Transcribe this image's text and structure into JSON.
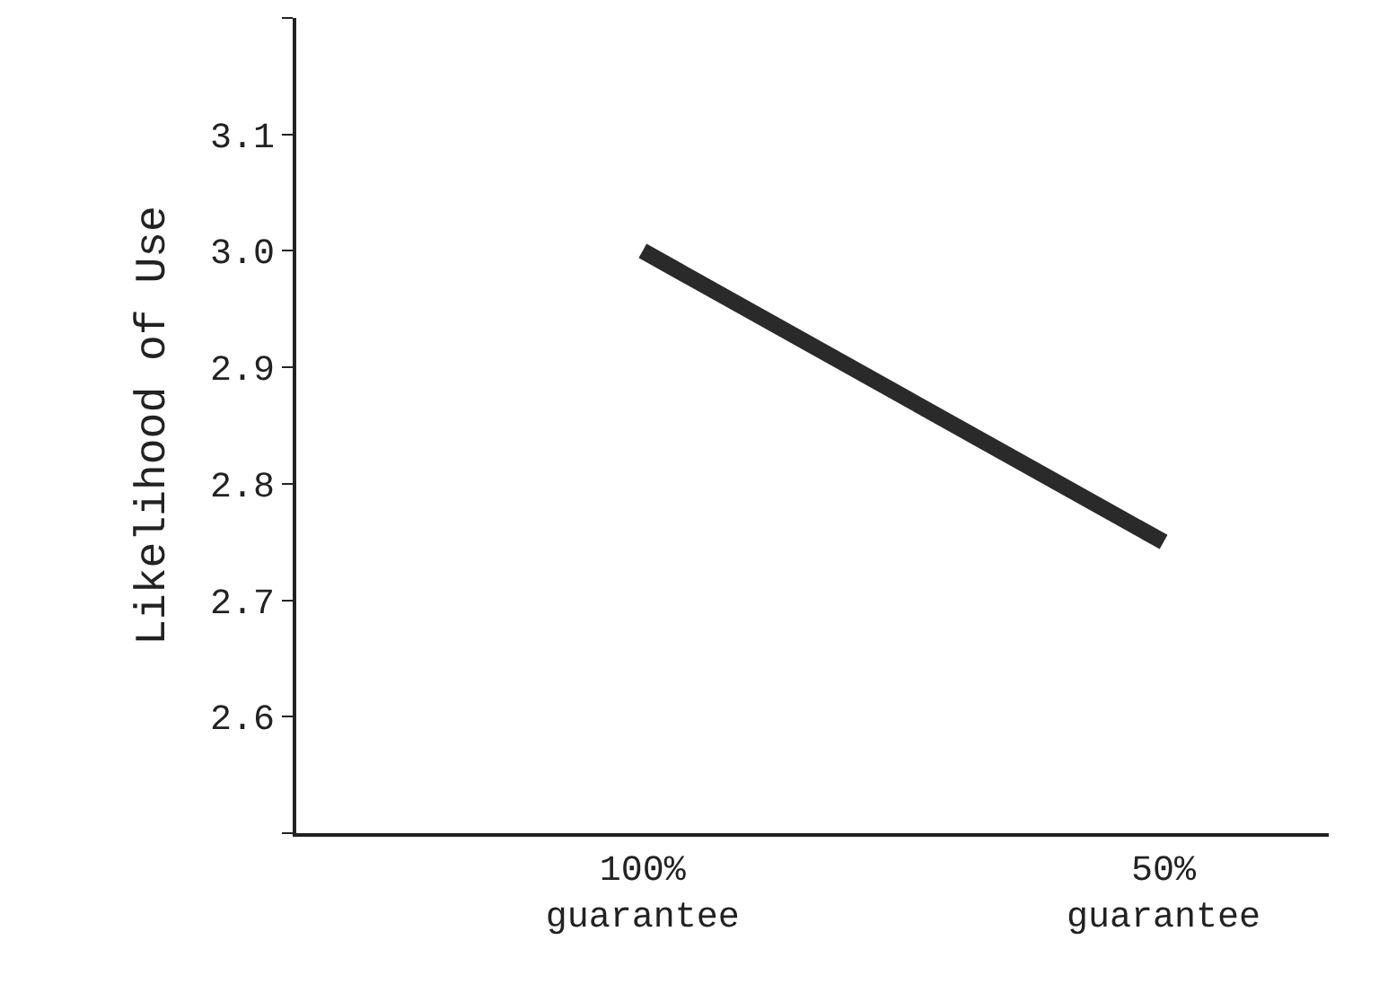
{
  "chart_data": {
    "type": "line",
    "ylabel": "Likelihood of Use",
    "categories": [
      "100%\nguarantee",
      "50%\nguarantee"
    ],
    "series": [
      {
        "color": "#2a2a2a",
        "values": [
          3.0,
          2.75
        ]
      }
    ],
    "ylim": [
      2.5,
      3.2
    ],
    "yticks": [
      {
        "value": 2.5,
        "label": null
      },
      2.6,
      2.7,
      2.8,
      2.9,
      {
        "value": 3.0,
        "label": "3.0"
      },
      3.1,
      {
        "value": 3.2,
        "label": null
      }
    ],
    "marker": "none",
    "line_style": "solid"
  }
}
